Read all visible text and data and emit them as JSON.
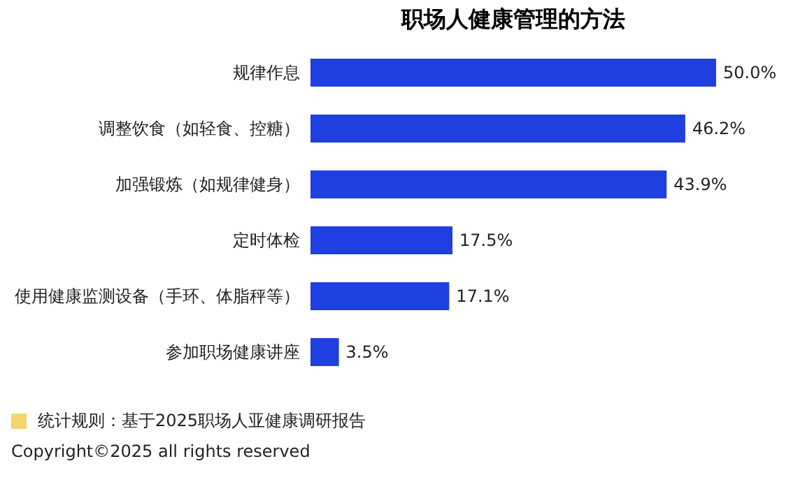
{
  "chart_data": {
    "type": "bar",
    "orientation": "horizontal",
    "title": "职场人健康管理的方法",
    "categories": [
      "规律作息",
      "调整饮食（如轻食、控糖）",
      "加强锻炼（如规律健身）",
      "定时体检",
      "使用健康监测设备（手环、体脂秤等）",
      "参加职场健康讲座"
    ],
    "values": [
      50.0,
      46.2,
      43.9,
      17.5,
      17.1,
      3.5
    ],
    "value_labels": [
      "50.0%",
      "46.2%",
      "43.9%",
      "17.5%",
      "17.1%",
      "3.5%"
    ],
    "color": "#1f3fe0",
    "annotations": [
      "统计规则：基于2025职场人亚健康调研报告",
      "Copyright©2025 all rights reserved"
    ]
  }
}
